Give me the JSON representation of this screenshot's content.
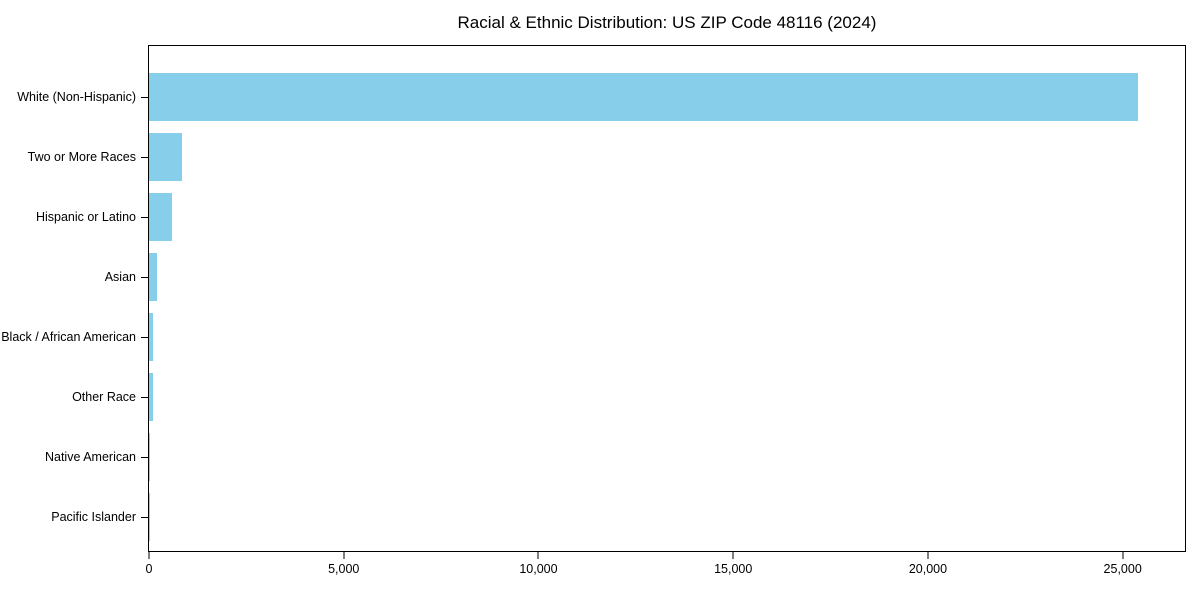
{
  "chart_data": {
    "type": "bar",
    "orientation": "horizontal",
    "title": "Racial & Ethnic Distribution: US ZIP Code 48116 (2024)",
    "categories": [
      "White (Non-Hispanic)",
      "Two or More Races",
      "Hispanic or Latino",
      "Asian",
      "Black / African American",
      "Other Race",
      "Native American",
      "Pacific Islander"
    ],
    "values": [
      25400,
      850,
      600,
      210,
      100,
      90,
      25,
      4
    ],
    "xlabel": "",
    "ylabel": "",
    "xlim": [
      0,
      26600
    ],
    "x_ticks": [
      0,
      5000,
      10000,
      15000,
      20000,
      25000
    ],
    "x_tick_labels": [
      "0",
      "5,000",
      "10,000",
      "15,000",
      "20,000",
      "25,000"
    ],
    "bar_color": "#87CEEB",
    "grid": false,
    "legend_position": "none",
    "background_color": "#ffffff"
  }
}
